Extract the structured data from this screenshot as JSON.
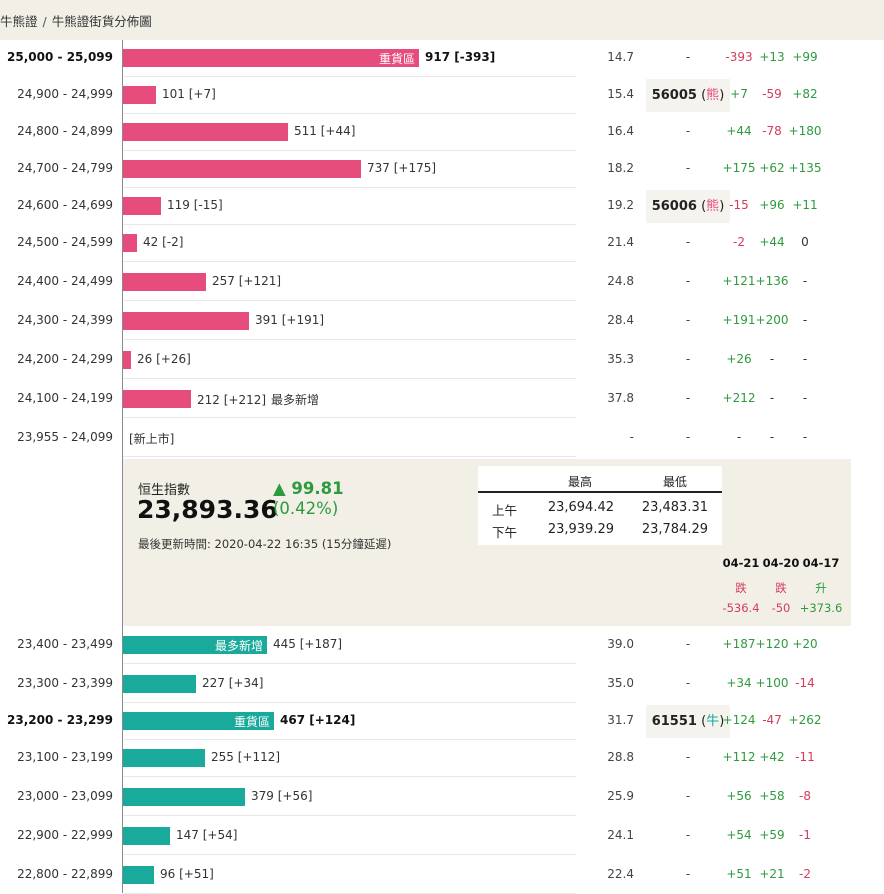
{
  "breadcrumb": {
    "parent": "牛熊證",
    "separator": "/",
    "current": "牛熊證街貨分佈圖"
  },
  "bear_rows": [
    {
      "range": "25,000 - 25,099",
      "bold": true,
      "value": "917 [-393]",
      "bar_value": 917,
      "tag_inside": "重貨區",
      "tag_outside": "",
      "pct": "14.7",
      "code": "-",
      "code_suffix": "",
      "code_dir": "",
      "chg": [
        "-393",
        "+13",
        "+99"
      ]
    },
    {
      "range": "24,900 - 24,999",
      "bold": false,
      "value": "101 [+7]",
      "bar_value": 101,
      "tag_inside": "",
      "tag_outside": "",
      "pct": "15.4",
      "code": "56005",
      "code_suffix": "熊",
      "code_dir": "bear",
      "chg": [
        "+7",
        "-59",
        "+82"
      ]
    },
    {
      "range": "24,800 - 24,899",
      "bold": false,
      "value": "511 [+44]",
      "bar_value": 511,
      "tag_inside": "",
      "tag_outside": "",
      "pct": "16.4",
      "code": "-",
      "code_suffix": "",
      "code_dir": "",
      "chg": [
        "+44",
        "-78",
        "+180"
      ]
    },
    {
      "range": "24,700 - 24,799",
      "bold": false,
      "value": "737 [+175]",
      "bar_value": 737,
      "tag_inside": "",
      "tag_outside": "",
      "pct": "18.2",
      "code": "-",
      "code_suffix": "",
      "code_dir": "",
      "chg": [
        "+175",
        "+62",
        "+135"
      ]
    },
    {
      "range": "24,600 - 24,699",
      "bold": false,
      "value": "119 [-15]",
      "bar_value": 119,
      "tag_inside": "",
      "tag_outside": "",
      "pct": "19.2",
      "code": "56006",
      "code_suffix": "熊",
      "code_dir": "bear",
      "chg": [
        "-15",
        "+96",
        "+11"
      ]
    },
    {
      "range": "24,500 - 24,599",
      "bold": false,
      "value": "42 [-2]",
      "bar_value": 42,
      "tag_inside": "",
      "tag_outside": "",
      "pct": "21.4",
      "code": "-",
      "code_suffix": "",
      "code_dir": "",
      "chg": [
        "-2",
        "+44",
        "0"
      ]
    },
    {
      "range": "24,400 - 24,499",
      "bold": false,
      "value": "257 [+121]",
      "bar_value": 257,
      "tag_inside": "",
      "tag_outside": "",
      "pct": "24.8",
      "code": "-",
      "code_suffix": "",
      "code_dir": "",
      "chg": [
        "+121",
        "+136",
        "-"
      ]
    },
    {
      "range": "24,300 - 24,399",
      "bold": false,
      "value": "391 [+191]",
      "bar_value": 391,
      "tag_inside": "",
      "tag_outside": "",
      "pct": "28.4",
      "code": "-",
      "code_suffix": "",
      "code_dir": "",
      "chg": [
        "+191",
        "+200",
        "-"
      ]
    },
    {
      "range": "24,200 - 24,299",
      "bold": false,
      "value": "26 [+26]",
      "bar_value": 26,
      "tag_inside": "",
      "tag_outside": "",
      "pct": "35.3",
      "code": "-",
      "code_suffix": "",
      "code_dir": "",
      "chg": [
        "+26",
        "-",
        "-"
      ]
    },
    {
      "range": "24,100 - 24,199",
      "bold": false,
      "value": "212 [+212]",
      "bar_value": 212,
      "tag_inside": "",
      "tag_outside": "最多新增",
      "pct": "37.8",
      "code": "-",
      "code_suffix": "",
      "code_dir": "",
      "chg": [
        "+212",
        "-",
        "-"
      ]
    },
    {
      "range": "23,955 - 24,099",
      "bold": false,
      "value": "[新上市]",
      "bar_value": 0,
      "tag_inside": "",
      "tag_outside": "",
      "pct": "-",
      "code": "-",
      "code_suffix": "",
      "code_dir": "",
      "chg": [
        "-",
        "-",
        "-"
      ]
    }
  ],
  "index": {
    "name": "恒生指數",
    "value": "23,893.36",
    "change": "▲ 99.81",
    "change_pct": "(0.42%)",
    "updated": "最後更新時間: 2020-04-22 16:35 (15分鐘延遲)",
    "high_label": "最高",
    "low_label": "最低",
    "sessions": [
      {
        "label": "上午",
        "high": "23,694.42",
        "low": "23,483.31"
      },
      {
        "label": "下午",
        "high": "23,939.29",
        "low": "23,784.29"
      }
    ],
    "days": [
      {
        "date": "04-21",
        "dir": "跌",
        "amount": "-536.4",
        "type": "neg"
      },
      {
        "date": "04-20",
        "dir": "跌",
        "amount": "-50",
        "type": "neg"
      },
      {
        "date": "04-17",
        "dir": "升",
        "amount": "+373.6",
        "type": "pos"
      }
    ]
  },
  "bull_rows": [
    {
      "range": "23,400 - 23,499",
      "bold": false,
      "value": "445 [+187]",
      "bar_value": 445,
      "tag_inside": "最多新增",
      "tag_outside": "",
      "pct": "39.0",
      "code": "-",
      "code_suffix": "",
      "code_dir": "",
      "chg": [
        "+187",
        "+120",
        "+20"
      ]
    },
    {
      "range": "23,300 - 23,399",
      "bold": false,
      "value": "227 [+34]",
      "bar_value": 227,
      "tag_inside": "",
      "tag_outside": "",
      "pct": "35.0",
      "code": "-",
      "code_suffix": "",
      "code_dir": "",
      "chg": [
        "+34",
        "+100",
        "-14"
      ]
    },
    {
      "range": "23,200 - 23,299",
      "bold": true,
      "value": "467 [+124]",
      "bar_value": 467,
      "tag_inside": "重貨區",
      "tag_outside": "",
      "pct": "31.7",
      "code": "61551",
      "code_suffix": "牛",
      "code_dir": "bull",
      "chg": [
        "+124",
        "-47",
        "+262"
      ]
    },
    {
      "range": "23,100 - 23,199",
      "bold": false,
      "value": "255 [+112]",
      "bar_value": 255,
      "tag_inside": "",
      "tag_outside": "",
      "pct": "28.8",
      "code": "-",
      "code_suffix": "",
      "code_dir": "",
      "chg": [
        "+112",
        "+42",
        "-11"
      ]
    },
    {
      "range": "23,000 - 23,099",
      "bold": false,
      "value": "379 [+56]",
      "bar_value": 379,
      "tag_inside": "",
      "tag_outside": "",
      "pct": "25.9",
      "code": "-",
      "code_suffix": "",
      "code_dir": "",
      "chg": [
        "+56",
        "+58",
        "-8"
      ]
    },
    {
      "range": "22,900 - 22,999",
      "bold": false,
      "value": "147 [+54]",
      "bar_value": 147,
      "tag_inside": "",
      "tag_outside": "",
      "pct": "24.1",
      "code": "-",
      "code_suffix": "",
      "code_dir": "",
      "chg": [
        "+54",
        "+59",
        "-1"
      ]
    },
    {
      "range": "22,800 - 22,899",
      "bold": false,
      "value": "96 [+51]",
      "bar_value": 96,
      "tag_inside": "",
      "tag_outside": "",
      "pct": "22.4",
      "code": "-",
      "code_suffix": "",
      "code_dir": "",
      "chg": [
        "+51",
        "+21",
        "-2"
      ]
    }
  ],
  "colors": {
    "bear": "#e64d7c",
    "bull": "#1aaa9b",
    "positive": "#2e9a3e",
    "negative": "#d23c5e"
  }
}
